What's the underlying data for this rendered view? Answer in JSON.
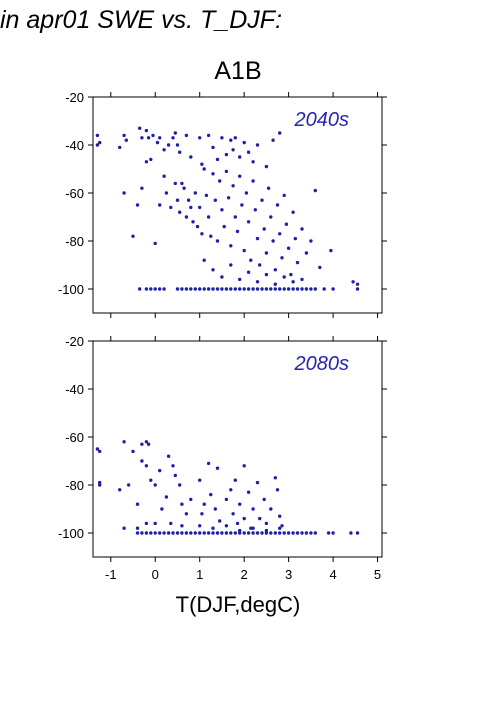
{
  "figure": {
    "title": "in apr01 SWE vs. T_DJF:",
    "scenario": "A1B",
    "xlabel": "T(DJF,degC)"
  },
  "colors": {
    "points": "#1f1fa8",
    "axes": "#000000",
    "label": "#2525b0"
  },
  "chart_data": [
    {
      "type": "scatter",
      "panel_label": "2040s",
      "xlim": [
        -1.4,
        5.1
      ],
      "ylim": [
        -110,
        -20
      ],
      "xticks": [
        -1,
        0,
        1,
        2,
        3,
        4,
        5
      ],
      "yticks": [
        -20,
        -40,
        -60,
        -80,
        -100
      ],
      "grid": false,
      "points": [
        [
          -1.3,
          -36
        ],
        [
          -1.25,
          -39
        ],
        [
          -1.3,
          -40
        ],
        [
          -0.8,
          -41
        ],
        [
          -0.7,
          -36
        ],
        [
          -0.65,
          -38
        ],
        [
          -0.35,
          -33
        ],
        [
          -0.3,
          -37
        ],
        [
          -0.2,
          -34
        ],
        [
          -0.15,
          -37
        ],
        [
          -0.05,
          -36
        ],
        [
          0.05,
          -39
        ],
        [
          0.1,
          -37
        ],
        [
          0.2,
          -42
        ],
        [
          0.3,
          -40
        ],
        [
          0.4,
          -37
        ],
        [
          0.45,
          -35
        ],
        [
          0.5,
          -40
        ],
        [
          0.55,
          -43
        ],
        [
          0.7,
          -36
        ],
        [
          0.8,
          -45
        ],
        [
          1.0,
          -37
        ],
        [
          1.05,
          -48
        ],
        [
          1.2,
          -36
        ],
        [
          1.3,
          -41
        ],
        [
          1.4,
          -46
        ],
        [
          1.5,
          -37
        ],
        [
          1.6,
          -44
        ],
        [
          1.7,
          -38
        ],
        [
          1.75,
          -42
        ],
        [
          1.8,
          -37
        ],
        [
          1.9,
          -45
        ],
        [
          2.0,
          -39
        ],
        [
          2.1,
          -43
        ],
        [
          2.2,
          -47
        ],
        [
          2.3,
          -40
        ],
        [
          2.5,
          -49
        ],
        [
          2.65,
          -38
        ],
        [
          2.8,
          -35
        ],
        [
          -0.7,
          -60
        ],
        [
          -0.5,
          -78
        ],
        [
          -0.4,
          -65
        ],
        [
          -0.3,
          -58
        ],
        [
          -0.2,
          -47
        ],
        [
          -0.1,
          -46
        ],
        [
          0.0,
          -81
        ],
        [
          0.1,
          -65
        ],
        [
          0.2,
          -53
        ],
        [
          0.25,
          -60
        ],
        [
          0.35,
          -66
        ],
        [
          0.45,
          -56
        ],
        [
          0.5,
          -63
        ],
        [
          0.55,
          -68
        ],
        [
          0.6,
          -56
        ],
        [
          0.65,
          -58
        ],
        [
          0.7,
          -70
        ],
        [
          0.75,
          -63
        ],
        [
          0.8,
          -66
        ],
        [
          0.85,
          -72
        ],
        [
          0.9,
          -60
        ],
        [
          0.95,
          -74
        ],
        [
          1.0,
          -66
        ],
        [
          1.05,
          -77
        ],
        [
          1.1,
          -50
        ],
        [
          1.15,
          -61
        ],
        [
          1.2,
          -70
        ],
        [
          1.25,
          -78
        ],
        [
          1.3,
          -52
        ],
        [
          1.35,
          -63
        ],
        [
          1.4,
          -80
        ],
        [
          1.45,
          -55
        ],
        [
          1.5,
          -67
        ],
        [
          1.55,
          -74
        ],
        [
          1.6,
          -51
        ],
        [
          1.65,
          -62
        ],
        [
          1.7,
          -82
        ],
        [
          1.75,
          -57
        ],
        [
          1.8,
          -70
        ],
        [
          1.85,
          -76
        ],
        [
          1.9,
          -53
        ],
        [
          1.95,
          -65
        ],
        [
          2.0,
          -84
        ],
        [
          2.05,
          -60
        ],
        [
          2.1,
          -72
        ],
        [
          2.15,
          -88
        ],
        [
          2.2,
          -55
        ],
        [
          2.25,
          -67
        ],
        [
          2.3,
          -79
        ],
        [
          2.35,
          -90
        ],
        [
          2.4,
          -63
        ],
        [
          2.45,
          -75
        ],
        [
          2.5,
          -85
        ],
        [
          2.55,
          -58
        ],
        [
          2.6,
          -70
        ],
        [
          2.65,
          -80
        ],
        [
          2.7,
          -92
        ],
        [
          2.75,
          -65
        ],
        [
          2.8,
          -77
        ],
        [
          2.85,
          -87
        ],
        [
          2.9,
          -61
        ],
        [
          2.95,
          -73
        ],
        [
          3.0,
          -83
        ],
        [
          3.05,
          -94
        ],
        [
          3.1,
          -68
        ],
        [
          3.15,
          -79
        ],
        [
          3.2,
          -89
        ],
        [
          3.3,
          -75
        ],
        [
          3.4,
          -85
        ],
        [
          3.5,
          -80
        ],
        [
          3.6,
          -59
        ],
        [
          3.7,
          -91
        ],
        [
          3.95,
          -84
        ],
        [
          4.45,
          -97
        ],
        [
          4.55,
          -100
        ],
        [
          4.55,
          -98
        ],
        [
          1.1,
          -88
        ],
        [
          1.3,
          -92
        ],
        [
          1.5,
          -95
        ],
        [
          1.7,
          -90
        ],
        [
          1.9,
          -96
        ],
        [
          2.1,
          -93
        ],
        [
          2.3,
          -97
        ],
        [
          2.5,
          -94
        ],
        [
          2.7,
          -98
        ],
        [
          2.9,
          -95
        ],
        [
          3.1,
          -97
        ],
        [
          3.3,
          -96
        ],
        [
          -0.35,
          -100
        ],
        [
          -0.2,
          -100
        ],
        [
          -0.1,
          -100
        ],
        [
          0.0,
          -100
        ],
        [
          0.1,
          -100
        ],
        [
          0.2,
          -100
        ],
        [
          0.5,
          -100
        ],
        [
          0.6,
          -100
        ],
        [
          0.7,
          -100
        ],
        [
          0.8,
          -100
        ],
        [
          0.9,
          -100
        ],
        [
          1.0,
          -100
        ],
        [
          1.1,
          -100
        ],
        [
          1.2,
          -100
        ],
        [
          1.3,
          -100
        ],
        [
          1.4,
          -100
        ],
        [
          1.5,
          -100
        ],
        [
          1.6,
          -100
        ],
        [
          1.7,
          -100
        ],
        [
          1.8,
          -100
        ],
        [
          1.9,
          -100
        ],
        [
          2.0,
          -100
        ],
        [
          2.1,
          -100
        ],
        [
          2.2,
          -100
        ],
        [
          2.3,
          -100
        ],
        [
          2.4,
          -100
        ],
        [
          2.5,
          -100
        ],
        [
          2.6,
          -100
        ],
        [
          2.7,
          -100
        ],
        [
          2.8,
          -100
        ],
        [
          2.9,
          -100
        ],
        [
          3.0,
          -100
        ],
        [
          3.1,
          -100
        ],
        [
          3.2,
          -100
        ],
        [
          3.3,
          -100
        ],
        [
          3.4,
          -100
        ],
        [
          3.5,
          -100
        ],
        [
          3.6,
          -100
        ],
        [
          3.8,
          -100
        ],
        [
          4.0,
          -100
        ]
      ]
    },
    {
      "type": "scatter",
      "panel_label": "2080s",
      "xlim": [
        -1.4,
        5.1
      ],
      "ylim": [
        -110,
        -20
      ],
      "xticks": [
        -1,
        0,
        1,
        2,
        3,
        4,
        5
      ],
      "yticks": [
        -20,
        -40,
        -60,
        -80,
        -100
      ],
      "grid": false,
      "points": [
        [
          -1.3,
          -65
        ],
        [
          -1.25,
          -66
        ],
        [
          -1.25,
          -79
        ],
        [
          -1.25,
          -80
        ],
        [
          -0.7,
          -62
        ],
        [
          -0.5,
          -66
        ],
        [
          -0.3,
          -63
        ],
        [
          -0.2,
          -62
        ],
        [
          -0.15,
          -63
        ],
        [
          -0.8,
          -82
        ],
        [
          -0.6,
          -80
        ],
        [
          -0.4,
          -88
        ],
        [
          -0.3,
          -70
        ],
        [
          -0.2,
          -72
        ],
        [
          -0.1,
          -78
        ],
        [
          0.0,
          -80
        ],
        [
          0.1,
          -74
        ],
        [
          0.15,
          -90
        ],
        [
          0.25,
          -85
        ],
        [
          0.3,
          -68
        ],
        [
          0.4,
          -72
        ],
        [
          0.45,
          -76
        ],
        [
          0.55,
          -80
        ],
        [
          0.6,
          -88
        ],
        [
          0.7,
          -92
        ],
        [
          0.8,
          -86
        ],
        [
          1.0,
          -78
        ],
        [
          1.05,
          -92
        ],
        [
          1.1,
          -88
        ],
        [
          1.2,
          -71
        ],
        [
          1.25,
          -84
        ],
        [
          1.35,
          -90
        ],
        [
          1.4,
          -73
        ],
        [
          1.45,
          -95
        ],
        [
          1.6,
          -86
        ],
        [
          1.7,
          -82
        ],
        [
          1.75,
          -92
        ],
        [
          1.8,
          -78
        ],
        [
          1.85,
          -96
        ],
        [
          1.9,
          -88
        ],
        [
          2.0,
          -72
        ],
        [
          2.0,
          -94
        ],
        [
          2.1,
          -83
        ],
        [
          2.15,
          -98
        ],
        [
          2.2,
          -90
        ],
        [
          2.3,
          -79
        ],
        [
          2.35,
          -94
        ],
        [
          2.45,
          -86
        ],
        [
          2.5,
          -96
        ],
        [
          2.6,
          -90
        ],
        [
          2.7,
          -77
        ],
        [
          2.75,
          -82
        ],
        [
          2.8,
          -93
        ],
        [
          2.85,
          -97
        ],
        [
          -0.7,
          -98
        ],
        [
          -0.4,
          -98
        ],
        [
          -0.2,
          -96
        ],
        [
          0.0,
          -96
        ],
        [
          0.35,
          -96
        ],
        [
          0.6,
          -97
        ],
        [
          1.0,
          -97
        ],
        [
          1.3,
          -98
        ],
        [
          1.6,
          -97
        ],
        [
          1.9,
          -99
        ],
        [
          2.2,
          -98
        ],
        [
          2.5,
          -99
        ],
        [
          2.8,
          -98
        ],
        [
          -0.4,
          -100
        ],
        [
          -0.3,
          -100
        ],
        [
          -0.2,
          -100
        ],
        [
          -0.1,
          -100
        ],
        [
          0.0,
          -100
        ],
        [
          0.1,
          -100
        ],
        [
          0.2,
          -100
        ],
        [
          0.3,
          -100
        ],
        [
          0.4,
          -100
        ],
        [
          0.5,
          -100
        ],
        [
          0.6,
          -100
        ],
        [
          0.7,
          -100
        ],
        [
          0.8,
          -100
        ],
        [
          0.9,
          -100
        ],
        [
          1.0,
          -100
        ],
        [
          1.1,
          -100
        ],
        [
          1.2,
          -100
        ],
        [
          1.3,
          -100
        ],
        [
          1.4,
          -100
        ],
        [
          1.5,
          -100
        ],
        [
          1.6,
          -100
        ],
        [
          1.7,
          -100
        ],
        [
          1.8,
          -100
        ],
        [
          1.9,
          -100
        ],
        [
          2.0,
          -100
        ],
        [
          2.1,
          -100
        ],
        [
          2.2,
          -100
        ],
        [
          2.3,
          -100
        ],
        [
          2.4,
          -100
        ],
        [
          2.5,
          -100
        ],
        [
          2.6,
          -100
        ],
        [
          2.7,
          -100
        ],
        [
          2.8,
          -100
        ],
        [
          2.9,
          -100
        ],
        [
          3.0,
          -100
        ],
        [
          3.1,
          -100
        ],
        [
          3.2,
          -100
        ],
        [
          3.3,
          -100
        ],
        [
          3.4,
          -100
        ],
        [
          3.5,
          -100
        ],
        [
          3.6,
          -100
        ],
        [
          3.9,
          -100
        ],
        [
          4.0,
          -100
        ],
        [
          4.4,
          -100
        ],
        [
          4.55,
          -100
        ]
      ]
    }
  ]
}
